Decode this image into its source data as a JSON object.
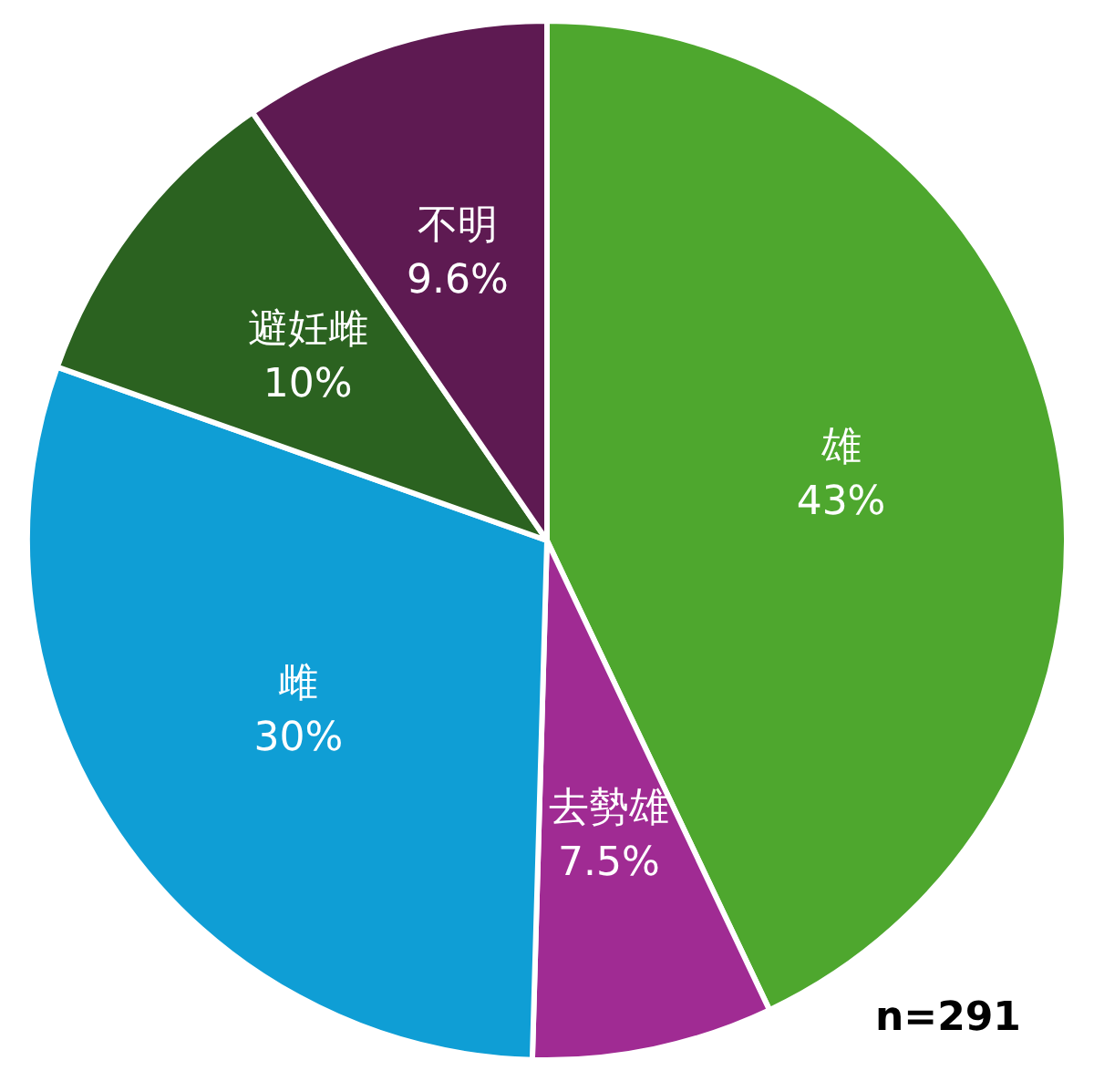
{
  "chart_data": {
    "type": "pie",
    "categories": [
      "雄",
      "去勢雄",
      "雌",
      "避妊雌",
      "不明"
    ],
    "values": [
      43,
      7.5,
      30,
      10,
      9.6
    ],
    "value_labels": [
      "43%",
      "7.5%",
      "30%",
      "10%",
      "9.6%"
    ],
    "colors": [
      "#4ea72e",
      "#a02b93",
      "#0f9ed5",
      "#2b6220",
      "#5e1a52"
    ],
    "annotations": [
      "n=291"
    ],
    "legend": false
  }
}
